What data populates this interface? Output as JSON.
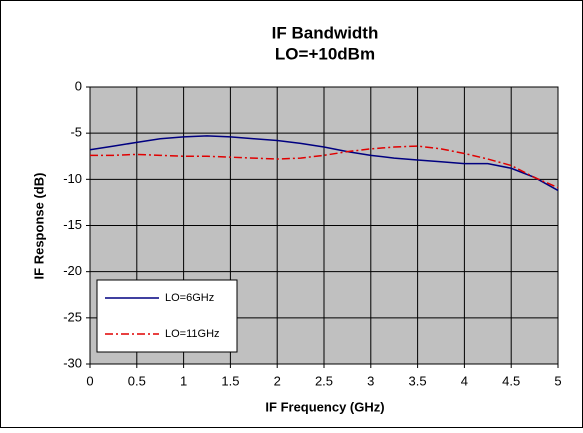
{
  "chart_data": {
    "type": "line",
    "title": "IF Bandwidth",
    "subtitle": "LO=+10dBm",
    "x_label": "IF Frequency  (GHz)",
    "y_label": "IF Response (dB)",
    "x": [
      0,
      0.25,
      0.5,
      0.75,
      1,
      1.25,
      1.5,
      1.75,
      2,
      2.25,
      2.5,
      2.75,
      3,
      3.25,
      3.5,
      3.75,
      4,
      4.25,
      4.5,
      4.75,
      5
    ],
    "series": [
      {
        "name": "LO=6GHz",
        "color": "#000080",
        "dash": "solid",
        "values": [
          -6.8,
          -6.4,
          -6.0,
          -5.6,
          -5.4,
          -5.3,
          -5.4,
          -5.6,
          -5.8,
          -6.1,
          -6.5,
          -7.0,
          -7.4,
          -7.7,
          -7.9,
          -8.1,
          -8.3,
          -8.3,
          -8.8,
          -9.8,
          -11.2
        ]
      },
      {
        "name": "LO=11GHz",
        "color": "#e00000",
        "dash": "dashdot",
        "values": [
          -7.4,
          -7.4,
          -7.3,
          -7.4,
          -7.5,
          -7.5,
          -7.6,
          -7.7,
          -7.8,
          -7.7,
          -7.4,
          -7.0,
          -6.7,
          -6.5,
          -6.4,
          -6.7,
          -7.2,
          -7.8,
          -8.5,
          -9.8,
          -10.9
        ]
      }
    ],
    "xlim": [
      0,
      5
    ],
    "xticks": [
      0,
      0.5,
      1,
      1.5,
      2,
      2.5,
      3,
      3.5,
      4,
      4.5,
      5
    ],
    "ylim": [
      -30,
      0
    ],
    "yticks": [
      -30,
      -25,
      -20,
      -15,
      -10,
      -5,
      0
    ],
    "grid": true,
    "legend": "lower left",
    "plot_background": "#c0c0c0"
  }
}
